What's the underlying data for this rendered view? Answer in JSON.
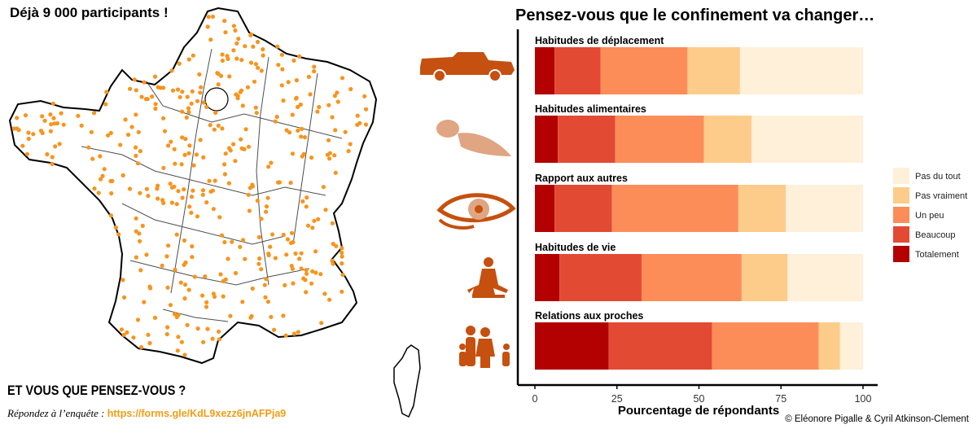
{
  "header": {
    "participants": "Déjà 9 000 participants !"
  },
  "cta": {
    "heading": "ET VOUS QUE PENSEZ-VOUS ?",
    "prompt": "Répondez à l’enquête : ",
    "link": "https://forms.gle/KdL9xezz6jnAFPja9"
  },
  "credit": "© Eléonore Pigalle & Cyril Atkinson-Clement",
  "colors": {
    "Totalement": "#b30000",
    "Beaucoup": "#e34a33",
    "Un peu": "#fc8d59",
    "Pas vraiment": "#fdcc8a",
    "Pas du tout": "#fef0d9",
    "map_dots": "#f7941d"
  },
  "icons": [
    "pickup-truck-icon",
    "food-icon",
    "eye-icon",
    "meditation-icon",
    "family-icon"
  ],
  "chart_data": {
    "type": "bar",
    "orientation": "horizontal",
    "stacked": true,
    "title": "Pensez-vous que le confinement va changer…",
    "xlabel": "Pourcentage de répondants",
    "ylabel": "",
    "xlim": [
      0,
      100
    ],
    "xticks": [
      0,
      25,
      50,
      75,
      100
    ],
    "categories": [
      "Habitudes de déplacement",
      "Habitudes alimentaires",
      "Rapport aux autres",
      "Habitudes de vie",
      "Relations aux proches"
    ],
    "series": [
      {
        "name": "Totalement",
        "values": [
          6,
          7,
          6,
          7.5,
          22.5
        ]
      },
      {
        "name": "Beaucoup",
        "values": [
          14,
          17.5,
          17.5,
          25,
          31.5
        ]
      },
      {
        "name": "Un peu",
        "values": [
          26.5,
          27,
          38.5,
          30.5,
          32.5
        ]
      },
      {
        "name": "Pas vraiment",
        "values": [
          16,
          14.5,
          14.5,
          14,
          6.5
        ]
      },
      {
        "name": "Pas du tout",
        "values": [
          37.5,
          34,
          23.5,
          23,
          7
        ]
      }
    ],
    "legend": {
      "position": "right",
      "order": [
        "Pas du tout",
        "Pas vraiment",
        "Un peu",
        "Beaucoup",
        "Totalement"
      ]
    },
    "grid": false
  }
}
